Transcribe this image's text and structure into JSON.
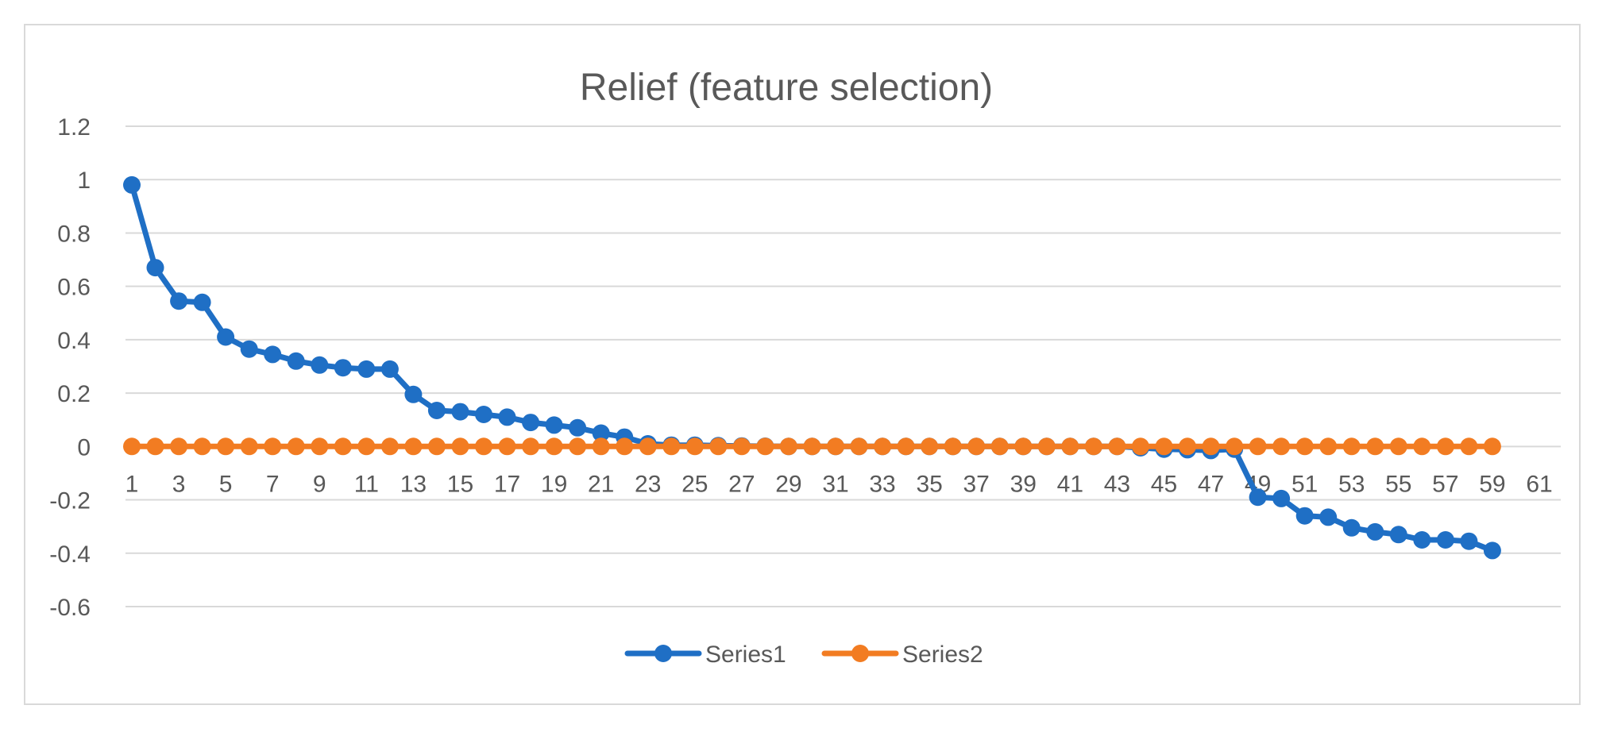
{
  "chart_data": {
    "type": "line",
    "title": "Relief (feature selection)",
    "xlabel": "",
    "ylabel": "",
    "x": [
      1,
      2,
      3,
      4,
      5,
      6,
      7,
      8,
      9,
      10,
      11,
      12,
      13,
      14,
      15,
      16,
      17,
      18,
      19,
      20,
      21,
      22,
      23,
      24,
      25,
      26,
      27,
      28,
      29,
      30,
      31,
      32,
      33,
      34,
      35,
      36,
      37,
      38,
      39,
      40,
      41,
      42,
      43,
      44,
      45,
      46,
      47,
      48,
      49,
      50,
      51,
      52,
      53,
      54,
      55,
      56,
      57,
      58,
      59
    ],
    "x_tick_labels": [
      "1",
      "3",
      "5",
      "7",
      "9",
      "11",
      "13",
      "15",
      "17",
      "19",
      "21",
      "23",
      "25",
      "27",
      "29",
      "31",
      "33",
      "35",
      "37",
      "39",
      "41",
      "43",
      "45",
      "47",
      "49",
      "51",
      "53",
      "55",
      "57",
      "59",
      "61"
    ],
    "xlim": [
      1,
      61
    ],
    "ylim": [
      -0.6,
      1.2
    ],
    "y_ticks": [
      1.2,
      1,
      0.8,
      0.6,
      0.4,
      0.2,
      0,
      -0.2,
      -0.4,
      -0.6
    ],
    "grid": true,
    "legend_position": "bottom",
    "series": [
      {
        "name": "Series1",
        "color": "#1f6fc5",
        "values": [
          0.98,
          0.67,
          0.545,
          0.54,
          0.41,
          0.365,
          0.345,
          0.32,
          0.305,
          0.295,
          0.29,
          0.29,
          0.195,
          0.135,
          0.13,
          0.12,
          0.11,
          0.09,
          0.08,
          0.07,
          0.05,
          0.035,
          0.01,
          0.005,
          0.005,
          0.003,
          0.002,
          0.001,
          0.0,
          0.0,
          0.0,
          0.0,
          0.0,
          0.0,
          0.0,
          0.0,
          0.0,
          0.0,
          0.0,
          0.0,
          0.0,
          0.0,
          0.0,
          -0.005,
          -0.01,
          -0.012,
          -0.015,
          -0.01,
          -0.19,
          -0.195,
          -0.26,
          -0.265,
          -0.305,
          -0.32,
          -0.33,
          -0.35,
          -0.35,
          -0.355,
          -0.39
        ]
      },
      {
        "name": "Series2",
        "color": "#f27c22",
        "values": [
          0,
          0,
          0,
          0,
          0,
          0,
          0,
          0,
          0,
          0,
          0,
          0,
          0,
          0,
          0,
          0,
          0,
          0,
          0,
          0,
          0,
          0,
          0,
          0,
          0,
          0,
          0,
          0,
          0,
          0,
          0,
          0,
          0,
          0,
          0,
          0,
          0,
          0,
          0,
          0,
          0,
          0,
          0,
          0,
          0,
          0,
          0,
          0,
          0,
          0,
          0,
          0,
          0,
          0,
          0,
          0,
          0,
          0,
          0
        ]
      }
    ]
  }
}
